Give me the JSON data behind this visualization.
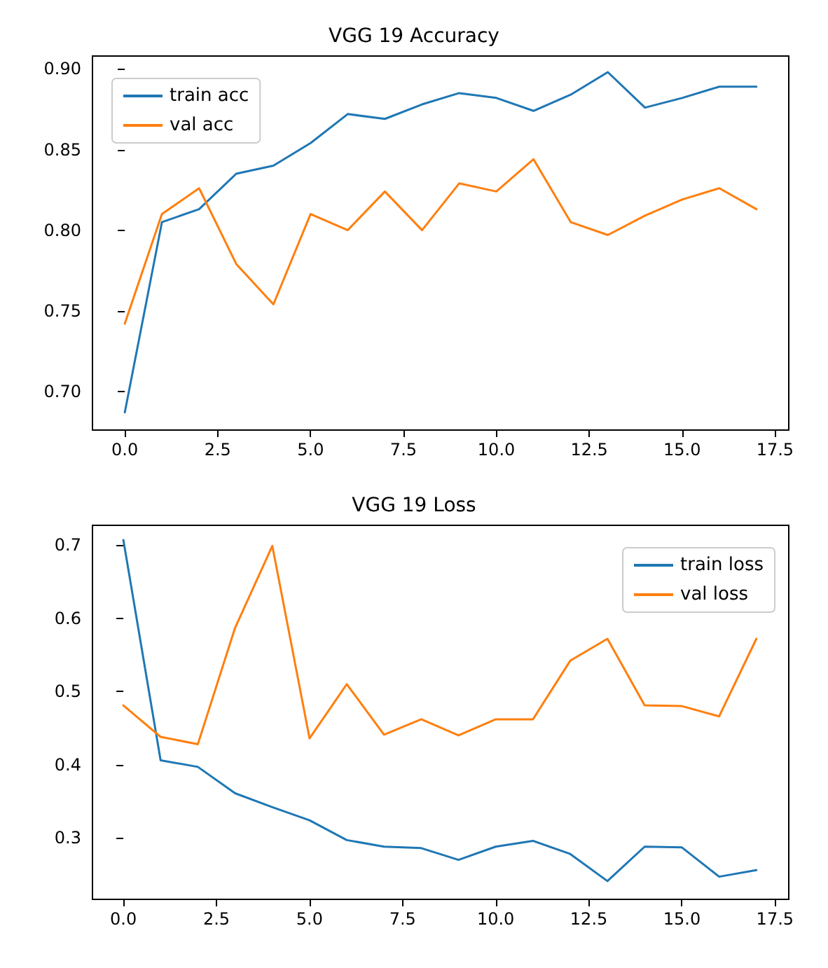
{
  "chart_data": [
    {
      "type": "line",
      "title": "VGG 19 Accuracy",
      "x": [
        0,
        1,
        2,
        3,
        4,
        5,
        6,
        7,
        8,
        9,
        10,
        11,
        12,
        13,
        14,
        15,
        16,
        17
      ],
      "series": [
        {
          "name": "train acc",
          "color": "#1f77b4",
          "values": [
            0.687,
            0.805,
            0.813,
            0.835,
            0.84,
            0.854,
            0.872,
            0.869,
            0.878,
            0.885,
            0.882,
            0.874,
            0.884,
            0.898,
            0.876,
            0.882,
            0.889,
            0.889
          ]
        },
        {
          "name": "val acc",
          "color": "#ff7f0e",
          "values": [
            0.742,
            0.81,
            0.826,
            0.779,
            0.754,
            0.81,
            0.8,
            0.824,
            0.8,
            0.829,
            0.824,
            0.844,
            0.805,
            0.797,
            0.809,
            0.819,
            0.826,
            0.813
          ]
        }
      ],
      "xlim": [
        -0.87,
        17.87
      ],
      "ylim": [
        0.676,
        0.908
      ],
      "xticks": [
        {
          "value": 0,
          "label": "0.0"
        },
        {
          "value": 2.5,
          "label": "2.5"
        },
        {
          "value": 5,
          "label": "5.0"
        },
        {
          "value": 7.5,
          "label": "7.5"
        },
        {
          "value": 10,
          "label": "10.0"
        },
        {
          "value": 12.5,
          "label": "12.5"
        },
        {
          "value": 15,
          "label": "15.0"
        },
        {
          "value": 17.5,
          "label": "17.5"
        }
      ],
      "yticks": [
        {
          "value": 0.7,
          "label": "0.70"
        },
        {
          "value": 0.75,
          "label": "0.75"
        },
        {
          "value": 0.8,
          "label": "0.80"
        },
        {
          "value": 0.85,
          "label": "0.85"
        },
        {
          "value": 0.9,
          "label": "0.90"
        }
      ],
      "legend": "top left",
      "grid": false,
      "marker": "none",
      "line_style": "solid"
    },
    {
      "type": "line",
      "title": "VGG 19 Loss",
      "x": [
        0,
        1,
        2,
        3,
        4,
        5,
        6,
        7,
        8,
        9,
        10,
        11,
        12,
        13,
        14,
        15,
        16,
        17
      ],
      "series": [
        {
          "name": "train loss",
          "color": "#1f77b4",
          "values": [
            0.707,
            0.406,
            0.397,
            0.361,
            0.342,
            0.324,
            0.297,
            0.288,
            0.286,
            0.27,
            0.288,
            0.296,
            0.278,
            0.241,
            0.288,
            0.287,
            0.247,
            0.256
          ]
        },
        {
          "name": "val loss",
          "color": "#ff7f0e",
          "values": [
            0.481,
            0.438,
            0.428,
            0.587,
            0.699,
            0.436,
            0.51,
            0.441,
            0.462,
            0.44,
            0.462,
            0.462,
            0.542,
            0.572,
            0.481,
            0.48,
            0.466,
            0.572
          ]
        }
      ],
      "xlim": [
        -0.83,
        17.87
      ],
      "ylim": [
        0.216,
        0.727
      ],
      "xticks": [
        {
          "value": 0,
          "label": "0.0"
        },
        {
          "value": 2.5,
          "label": "2.5"
        },
        {
          "value": 5,
          "label": "5.0"
        },
        {
          "value": 7.5,
          "label": "7.5"
        },
        {
          "value": 10,
          "label": "10.0"
        },
        {
          "value": 12.5,
          "label": "12.5"
        },
        {
          "value": 15,
          "label": "15.0"
        },
        {
          "value": 17.5,
          "label": "17.5"
        }
      ],
      "yticks": [
        0.3,
        0.4,
        0.5,
        0.6,
        0.7
      ],
      "legend": "top right",
      "grid": false,
      "marker": "none",
      "line_style": "solid"
    }
  ]
}
